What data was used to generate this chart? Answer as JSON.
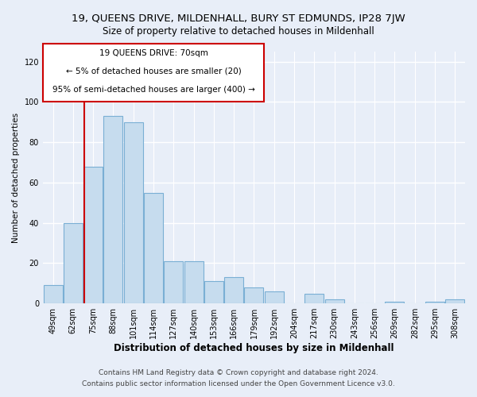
{
  "title": "19, QUEENS DRIVE, MILDENHALL, BURY ST EDMUNDS, IP28 7JW",
  "subtitle": "Size of property relative to detached houses in Mildenhall",
  "xlabel": "Distribution of detached houses by size in Mildenhall",
  "ylabel": "Number of detached properties",
  "bar_labels": [
    "49sqm",
    "62sqm",
    "75sqm",
    "88sqm",
    "101sqm",
    "114sqm",
    "127sqm",
    "140sqm",
    "153sqm",
    "166sqm",
    "179sqm",
    "192sqm",
    "204sqm",
    "217sqm",
    "230sqm",
    "243sqm",
    "256sqm",
    "269sqm",
    "282sqm",
    "295sqm",
    "308sqm"
  ],
  "bar_values": [
    9,
    40,
    68,
    93,
    90,
    55,
    21,
    21,
    11,
    13,
    8,
    6,
    0,
    5,
    2,
    0,
    0,
    1,
    0,
    1,
    2
  ],
  "bar_color": "#c6dcee",
  "bar_edge_color": "#7aafd4",
  "ref_line_x": 1.54,
  "ref_line_color": "#cc0000",
  "annotation_line1": "19 QUEENS DRIVE: 70sqm",
  "annotation_line2": "← 5% of detached houses are smaller (20)",
  "annotation_line3": "95% of semi-detached houses are larger (400) →",
  "ylim": [
    0,
    125
  ],
  "yticks": [
    0,
    20,
    40,
    60,
    80,
    100,
    120
  ],
  "footer_line1": "Contains HM Land Registry data © Crown copyright and database right 2024.",
  "footer_line2": "Contains public sector information licensed under the Open Government Licence v3.0.",
  "bg_color": "#e8eef8",
  "plot_bg_color": "#e8eef8",
  "grid_color": "#ffffff",
  "title_fontsize": 9.5,
  "subtitle_fontsize": 8.5,
  "xlabel_fontsize": 8.5,
  "ylabel_fontsize": 7.5,
  "tick_fontsize": 7,
  "footer_fontsize": 6.5,
  "annotation_fontsize": 7.5
}
